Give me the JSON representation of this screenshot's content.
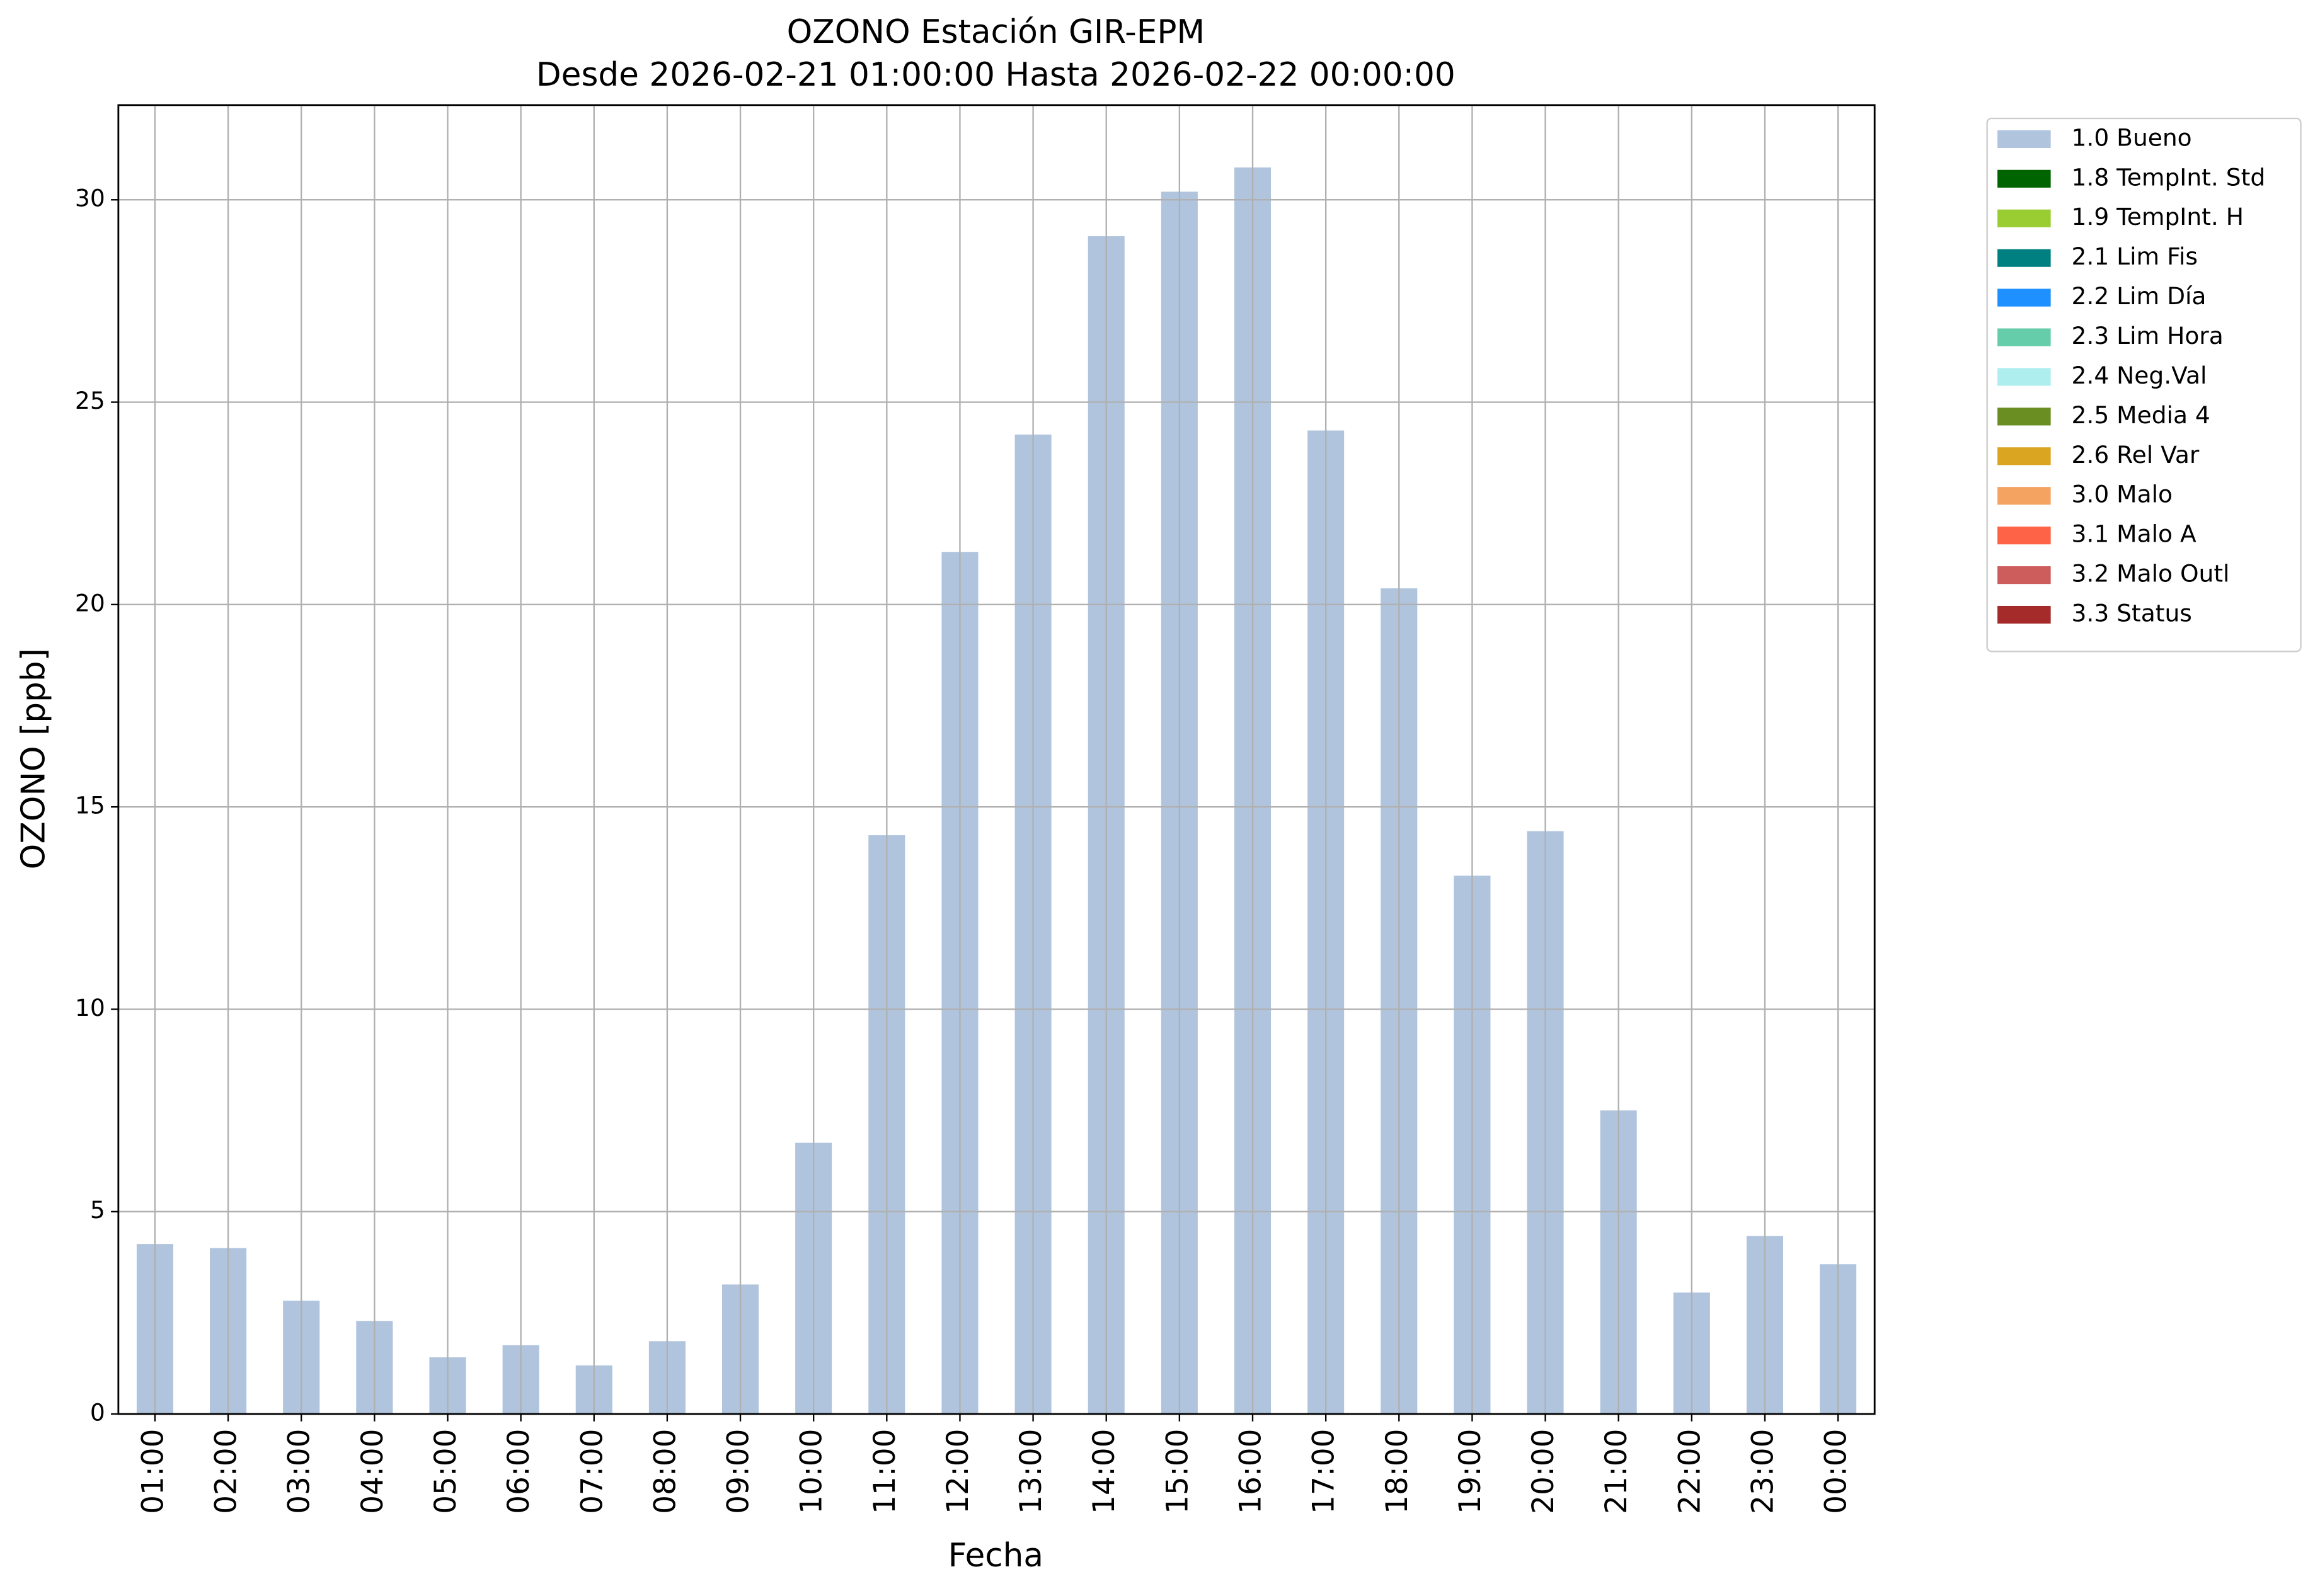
{
  "chart_data": {
    "type": "bar",
    "title": "OZONO Estación GIR-EPM",
    "subtitle": "Desde 2026-02-21 01:00:00 Hasta 2026-02-22 00:00:00",
    "x_label": "Fecha",
    "y_label": "OZONO [ppb]",
    "categories": [
      "01:00",
      "02:00",
      "03:00",
      "04:00",
      "05:00",
      "06:00",
      "07:00",
      "08:00",
      "09:00",
      "10:00",
      "11:00",
      "12:00",
      "13:00",
      "14:00",
      "15:00",
      "16:00",
      "17:00",
      "18:00",
      "19:00",
      "20:00",
      "21:00",
      "22:00",
      "23:00",
      "00:00"
    ],
    "series": [
      {
        "name": "1.0 Bueno",
        "color": "#b0c4de",
        "values": [
          4.2,
          4.1,
          2.8,
          2.3,
          1.4,
          1.7,
          1.2,
          1.8,
          3.2,
          6.7,
          14.3,
          21.3,
          24.2,
          29.1,
          30.2,
          30.8,
          24.3,
          20.4,
          13.3,
          14.4,
          7.5,
          3.0,
          4.4,
          3.7
        ]
      },
      {
        "name": "1.8 TempInt. Std",
        "color": "#006400"
      },
      {
        "name": "1.9 TempInt. H",
        "color": "#9acd32"
      },
      {
        "name": "2.1 Lim Fis",
        "color": "#008080"
      },
      {
        "name": "2.2 Lim Día",
        "color": "#1e90ff"
      },
      {
        "name": "2.3 Lim Hora",
        "color": "#66cdaa"
      },
      {
        "name": "2.4 Neg.Val",
        "color": "#afeeee"
      },
      {
        "name": "2.5 Media 4",
        "color": "#6b8e23"
      },
      {
        "name": "2.6 Rel Var",
        "color": "#daa520"
      },
      {
        "name": "3.0 Malo",
        "color": "#f4a460"
      },
      {
        "name": "3.1 Malo A",
        "color": "#ff6347"
      },
      {
        "name": "3.2 Malo Outl",
        "color": "#cd5c5c"
      },
      {
        "name": "3.3 Status",
        "color": "#a52a2a"
      }
    ],
    "ylim": [
      0,
      32.34
    ],
    "yticks": [
      0,
      5,
      10,
      15,
      20,
      25,
      30
    ],
    "grid": true,
    "legend": "outside upper right"
  }
}
